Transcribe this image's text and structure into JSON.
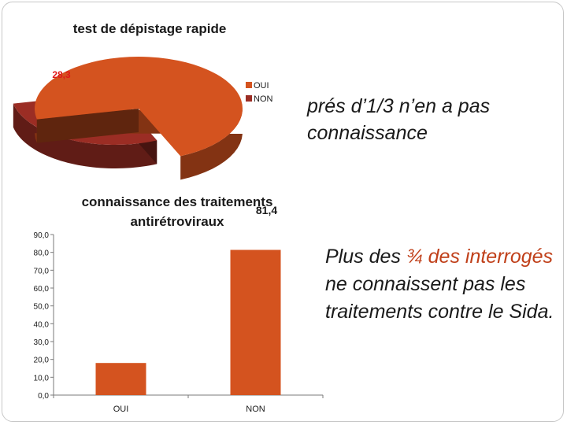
{
  "chart_data": [
    {
      "type": "pie",
      "title": "test de dépistage rapide",
      "categories": [
        "OUI",
        "NON"
      ],
      "values": [
        71.7,
        28.3
      ],
      "data_labels": [
        "",
        "28,3"
      ],
      "colors": [
        "#d4531f",
        "#9b2d24"
      ],
      "legend": "right",
      "style": "3d-exploded"
    },
    {
      "type": "bar",
      "title": "connaissance des traitements antirétroviraux",
      "categories": [
        "OUI",
        "NON"
      ],
      "values": [
        18.0,
        81.4
      ],
      "data_labels": [
        "",
        "81,4"
      ],
      "ylim": [
        0,
        90
      ],
      "yticks": [
        "0,0",
        "10,0",
        "20,0",
        "30,0",
        "40,0",
        "50,0",
        "60,0",
        "70,0",
        "80,0",
        "90,0"
      ],
      "bar_color": "#d4531f",
      "grid": false
    }
  ],
  "notes": {
    "note1": "prés d’1/3 n’en a pas connaissance",
    "note2_a": "Plus des ",
    "note2_b": "¾ des interrogés",
    "note2_c": " ne connaissent pas les traitements contre le Sida."
  }
}
